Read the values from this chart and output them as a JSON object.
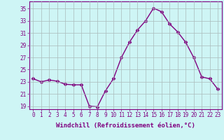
{
  "x": [
    0,
    1,
    2,
    3,
    4,
    5,
    6,
    7,
    8,
    9,
    10,
    11,
    12,
    13,
    14,
    15,
    16,
    17,
    18,
    19,
    20,
    21,
    22,
    23
  ],
  "y": [
    23.5,
    23.0,
    23.3,
    23.1,
    22.6,
    22.5,
    22.5,
    19.0,
    18.9,
    21.5,
    23.5,
    27.0,
    29.5,
    31.5,
    33.0,
    35.1,
    34.5,
    32.5,
    31.2,
    29.5,
    27.0,
    23.8,
    23.5,
    21.8
  ],
  "line_color": "#800080",
  "marker": "D",
  "marker_size": 2.5,
  "bg_color": "#cef5f5",
  "grid_color": "#aabbbb",
  "xlabel": "Windchill (Refroidissement éolien,°C)",
  "ylim": [
    18.5,
    36.2
  ],
  "xlim": [
    -0.5,
    23.5
  ],
  "yticks": [
    19,
    21,
    23,
    25,
    27,
    29,
    31,
    33,
    35
  ],
  "xtick_labels": [
    "0",
    "1",
    "2",
    "3",
    "4",
    "5",
    "6",
    "7",
    "8",
    "9",
    "10",
    "11",
    "12",
    "13",
    "14",
    "15",
    "16",
    "17",
    "18",
    "19",
    "20",
    "21",
    "22",
    "23"
  ],
  "label_color": "#800080",
  "tick_fontsize": 5.5,
  "xlabel_fontsize": 6.5,
  "linewidth": 1.0
}
